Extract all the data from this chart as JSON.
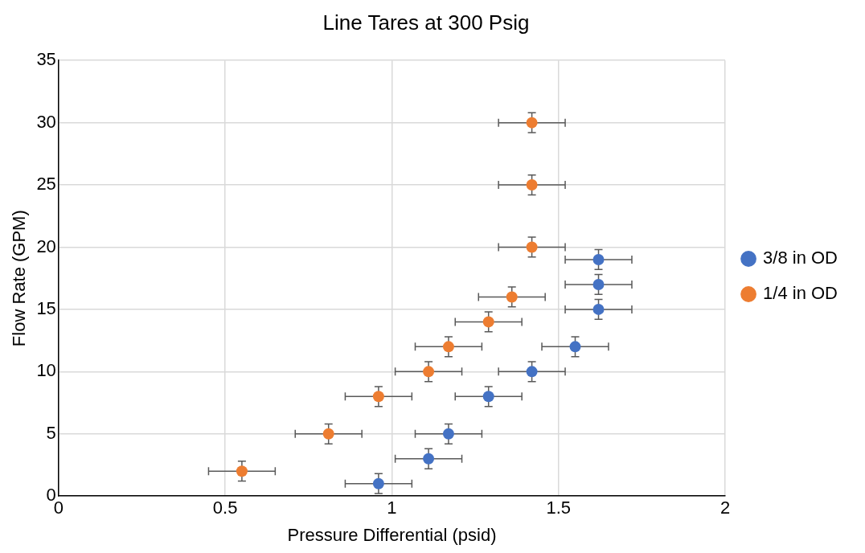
{
  "chart_data": {
    "type": "scatter",
    "title": "Line Tares at 300 Psig",
    "xlabel": "Pressure Differential (psid)",
    "ylabel": "Flow Rate (GPM)",
    "xlim": [
      0,
      2
    ],
    "xticks": [
      0,
      0.5,
      1,
      1.5,
      2
    ],
    "ylim": [
      0,
      35
    ],
    "yticks": [
      0,
      5,
      10,
      15,
      20,
      25,
      30,
      35
    ],
    "grid": true,
    "legend": "right",
    "marker": "circle",
    "series": [
      {
        "name": "3/8 in OD",
        "color": "#4472c4",
        "x": [
          0.96,
          1.11,
          1.17,
          1.29,
          1.42,
          1.55,
          1.62,
          1.62,
          1.62
        ],
        "values": [
          1,
          3,
          5,
          8,
          10,
          12,
          15,
          17,
          19
        ],
        "errors": [
          0.8,
          0.8,
          0.8,
          0.8,
          0.8,
          0.8,
          0.8,
          0.8,
          0.8
        ],
        "xerrors": [
          0.1,
          0.1,
          0.1,
          0.1,
          0.1,
          0.1,
          0.1,
          0.1,
          0.1
        ]
      },
      {
        "name": "1/4 in OD",
        "color": "#ed7d31",
        "x": [
          0.55,
          0.81,
          0.96,
          1.11,
          1.17,
          1.29,
          1.36,
          1.42,
          1.42,
          1.42
        ],
        "values": [
          2,
          5,
          8,
          10,
          12,
          14,
          16,
          20,
          25,
          30
        ],
        "errors": [
          0.8,
          0.8,
          0.8,
          0.8,
          0.8,
          0.8,
          0.8,
          0.8,
          0.8,
          0.8
        ],
        "xerrors": [
          0.1,
          0.1,
          0.1,
          0.1,
          0.1,
          0.1,
          0.1,
          0.1,
          0.1,
          0.1
        ]
      }
    ]
  }
}
